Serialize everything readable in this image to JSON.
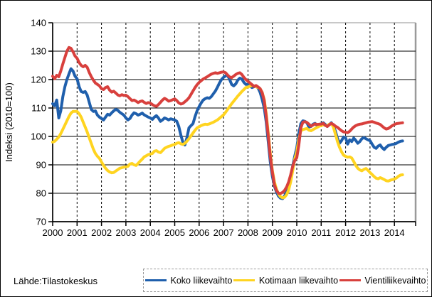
{
  "figure": {
    "source_label": "Lähde:Tilastokeskus"
  },
  "chart_data": {
    "type": "line",
    "title": "",
    "xlabel": "",
    "ylabel": "Indeksi (2010=100)",
    "ylim": [
      70,
      140
    ],
    "yticks": [
      70,
      80,
      90,
      100,
      110,
      120,
      130,
      140
    ],
    "xtick_labels": [
      "2000",
      "2001",
      "2002",
      "2003",
      "2004",
      "2005",
      "2006",
      "2007",
      "2008",
      "2009",
      "2010",
      "2011",
      "2012",
      "2013",
      "2014"
    ],
    "x_start_year": 2000,
    "x_interval": "monthly",
    "grid": {
      "horizontal": "solid",
      "vertical": "dashed"
    },
    "legend_position": "bottom",
    "series": [
      {
        "name": "Koko liikevaihto",
        "color": "#1F5FAC",
        "values": [
          111.5,
          110.8,
          112.8,
          106.5,
          109.0,
          114.0,
          117.5,
          120.0,
          122.0,
          123.8,
          123.0,
          121.2,
          120.3,
          117.5,
          115.8,
          115.5,
          115.8,
          114.5,
          112.0,
          109.5,
          108.8,
          109.0,
          107.5,
          106.8,
          106.3,
          105.8,
          106.8,
          107.8,
          107.5,
          108.3,
          109.0,
          109.5,
          109.2,
          108.5,
          108.0,
          107.5,
          106.5,
          105.8,
          106.3,
          107.5,
          108.3,
          108.0,
          107.5,
          107.8,
          108.2,
          107.6,
          107.2,
          106.8,
          106.5,
          106.0,
          106.8,
          107.3,
          106.5,
          105.3,
          105.8,
          106.5,
          106.2,
          105.8,
          106.2,
          106.0,
          105.8,
          105.3,
          103.5,
          100.5,
          98.0,
          97.0,
          99.5,
          103.0,
          103.8,
          104.5,
          107.0,
          109.0,
          110.5,
          111.8,
          112.8,
          113.3,
          113.6,
          113.4,
          114.0,
          115.0,
          116.0,
          117.3,
          118.8,
          120.0,
          120.8,
          121.3,
          121.5,
          120.0,
          118.3,
          117.8,
          118.5,
          119.8,
          120.5,
          120.2,
          119.0,
          118.3,
          118.3,
          117.8,
          117.2,
          117.5,
          117.8,
          117.0,
          115.5,
          113.0,
          110.0,
          105.0,
          98.0,
          91.0,
          86.0,
          82.5,
          80.5,
          79.0,
          78.3,
          78.1,
          79.0,
          80.5,
          82.5,
          85.5,
          89.5,
          93.0,
          96.0,
          101.0,
          104.5,
          105.5,
          105.3,
          104.8,
          103.3,
          103.5,
          104.3,
          104.6,
          103.8,
          104.2,
          104.4,
          104.8,
          104.2,
          103.5,
          104.2,
          104.8,
          103.8,
          101.8,
          99.3,
          97.6,
          98.5,
          99.8,
          99.5,
          97.3,
          98.8,
          98.2,
          99.4,
          98.6,
          97.6,
          98.2,
          99.2,
          99.6,
          99.2,
          98.8,
          98.5,
          97.3,
          96.2,
          95.8,
          96.6,
          97.0,
          96.0,
          95.4,
          96.2,
          96.8,
          97.0,
          97.2,
          97.3,
          97.6,
          98.0,
          98.3,
          98.4
        ]
      },
      {
        "name": "Kotimaan liikevaihto",
        "color": "#FFD420",
        "values": [
          98.0,
          98.3,
          99.0,
          99.8,
          101.0,
          102.5,
          104.0,
          105.5,
          107.0,
          108.2,
          108.8,
          108.8,
          108.8,
          108.0,
          106.8,
          105.0,
          103.3,
          101.5,
          99.5,
          97.5,
          95.5,
          94.0,
          93.0,
          92.3,
          91.0,
          89.8,
          88.8,
          88.0,
          87.5,
          87.2,
          87.3,
          87.8,
          88.3,
          88.8,
          89.0,
          89.2,
          89.3,
          89.5,
          90.3,
          90.5,
          90.0,
          89.8,
          90.5,
          91.3,
          92.0,
          92.8,
          93.2,
          93.6,
          93.8,
          94.0,
          94.8,
          95.0,
          94.5,
          94.3,
          95.0,
          95.8,
          96.2,
          96.5,
          96.7,
          97.0,
          97.2,
          97.6,
          97.8,
          97.4,
          97.2,
          97.6,
          98.3,
          99.2,
          100.2,
          101.2,
          102.2,
          103.0,
          103.4,
          103.8,
          104.1,
          104.3,
          104.2,
          104.4,
          104.7,
          105.0,
          105.4,
          105.8,
          106.4,
          107.0,
          107.6,
          108.5,
          109.5,
          110.5,
          111.5,
          112.4,
          113.3,
          114.2,
          115.0,
          115.8,
          116.5,
          117.2,
          117.4,
          117.7,
          117.9,
          117.8,
          117.5,
          117.2,
          116.8,
          115.5,
          113.0,
          108.0,
          101.0,
          94.0,
          88.0,
          84.0,
          81.5,
          79.8,
          78.8,
          78.4,
          78.6,
          79.5,
          81.2,
          84.0,
          88.0,
          92.0,
          94.6,
          99.0,
          102.0,
          102.4,
          102.6,
          102.8,
          102.2,
          102.0,
          102.4,
          102.8,
          103.2,
          103.6,
          103.8,
          104.1,
          103.9,
          103.7,
          104.3,
          104.5,
          103.3,
          100.8,
          98.2,
          96.2,
          94.6,
          93.4,
          93.0,
          92.7,
          92.8,
          92.4,
          91.2,
          89.8,
          88.8,
          88.2,
          87.9,
          88.4,
          88.7,
          88.1,
          87.3,
          86.6,
          85.9,
          85.3,
          85.1,
          85.5,
          85.2,
          84.8,
          84.4,
          84.3,
          84.6,
          84.8,
          85.0,
          85.4,
          86.0,
          86.4,
          86.5
        ]
      },
      {
        "name": "Vientiliikevaihto",
        "color": "#D8403D",
        "values": [
          121.2,
          120.3,
          121.5,
          121.0,
          123.0,
          125.5,
          127.8,
          130.0,
          131.3,
          131.0,
          129.8,
          128.3,
          127.5,
          126.0,
          125.0,
          124.5,
          125.0,
          124.3,
          122.5,
          121.0,
          119.8,
          118.8,
          118.3,
          117.8,
          116.8,
          116.5,
          117.2,
          117.5,
          116.3,
          115.6,
          115.9,
          115.3,
          114.6,
          114.3,
          114.7,
          114.4,
          114.5,
          114.0,
          113.3,
          112.6,
          112.8,
          112.4,
          111.9,
          112.3,
          112.5,
          112.0,
          111.6,
          111.9,
          111.7,
          111.2,
          110.8,
          110.6,
          111.2,
          112.0,
          112.8,
          113.4,
          113.0,
          112.4,
          112.6,
          112.9,
          113.2,
          112.6,
          111.8,
          111.4,
          111.6,
          112.2,
          112.8,
          113.6,
          114.8,
          116.0,
          117.2,
          118.2,
          119.0,
          119.6,
          120.2,
          120.6,
          121.0,
          121.5,
          121.9,
          122.2,
          122.4,
          122.2,
          122.4,
          122.6,
          122.7,
          122.4,
          121.6,
          120.9,
          120.7,
          121.2,
          121.8,
          122.2,
          122.4,
          121.8,
          120.8,
          120.0,
          119.4,
          118.8,
          118.2,
          117.6,
          117.9,
          117.4,
          116.8,
          115.4,
          112.5,
          107.0,
          100.0,
          93.0,
          87.5,
          83.0,
          81.0,
          80.0,
          79.9,
          80.3,
          81.0,
          82.2,
          84.0,
          86.5,
          89.5,
          91.5,
          92.5,
          97.0,
          103.0,
          105.0,
          105.2,
          104.9,
          104.3,
          103.6,
          104.0,
          104.4,
          104.2,
          104.3,
          104.3,
          104.6,
          103.9,
          103.5,
          104.1,
          104.6,
          104.2,
          103.6,
          103.2,
          102.6,
          102.0,
          101.6,
          101.5,
          101.3,
          101.8,
          102.6,
          103.3,
          103.8,
          104.1,
          104.3,
          104.4,
          104.6,
          104.8,
          105.0,
          105.1,
          105.2,
          105.0,
          104.7,
          104.5,
          104.2,
          103.6,
          103.0,
          102.6,
          102.8,
          103.3,
          103.8,
          104.2,
          104.5,
          104.6,
          104.7,
          104.8
        ]
      }
    ]
  }
}
